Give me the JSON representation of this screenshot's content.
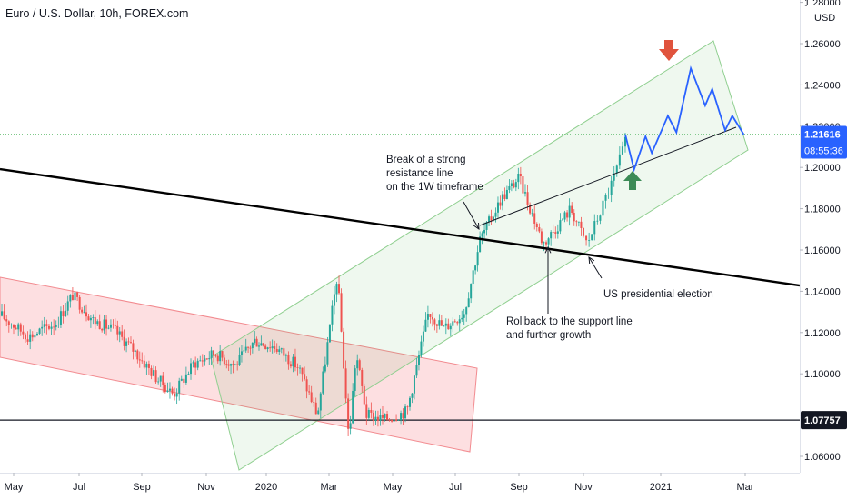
{
  "header": {
    "title": "Euro / U.S. Dollar, 10h, FOREX.com"
  },
  "price_axis": {
    "currency": "USD",
    "ticks": [
      "1.28000",
      "1.26000",
      "1.24000",
      "1.22000",
      "1.20000",
      "1.18000",
      "1.16000",
      "1.14000",
      "1.12000",
      "1.10000",
      "1.08000",
      "1.06000"
    ],
    "last_price": "1.21616",
    "countdown": "08:55:36",
    "level_label": "1.07757",
    "colors": {
      "price_tag": "#2962ff",
      "level_tag": "#131722"
    }
  },
  "time_axis": {
    "labels": [
      "May",
      "Jul",
      "Sep",
      "Nov",
      "2020",
      "Mar",
      "May",
      "Jul",
      "Sep",
      "Nov",
      "2021",
      "Mar"
    ]
  },
  "annotations": {
    "breakout": [
      "Break of a strong",
      "resistance line",
      "on the 1W timeframe"
    ],
    "rollback": [
      "Rollback to the support line",
      "and further growth"
    ],
    "election": "US presidential election"
  },
  "chart_data": {
    "type": "candlestick",
    "symbol": "EURUSD",
    "timeframe": "10h",
    "ylim": [
      1.052,
      1.285
    ],
    "price_path": [
      [
        "2019-04-20",
        1.128
      ],
      [
        "2019-05-15",
        1.118
      ],
      [
        "2019-06-10",
        1.125
      ],
      [
        "2019-06-25",
        1.138
      ],
      [
        "2019-07-15",
        1.126
      ],
      [
        "2019-08-05",
        1.121
      ],
      [
        "2019-08-25",
        1.111
      ],
      [
        "2019-09-15",
        1.098
      ],
      [
        "2019-10-01",
        1.09
      ],
      [
        "2019-10-20",
        1.105
      ],
      [
        "2019-11-10",
        1.11
      ],
      [
        "2019-11-30",
        1.104
      ],
      [
        "2019-12-20",
        1.116
      ],
      [
        "2020-01-10",
        1.113
      ],
      [
        "2020-02-01",
        1.103
      ],
      [
        "2020-02-19",
        1.08
      ],
      [
        "2020-03-09",
        1.148
      ],
      [
        "2020-03-20",
        1.068
      ],
      [
        "2020-03-27",
        1.11
      ],
      [
        "2020-04-06",
        1.08
      ],
      [
        "2020-04-24",
        1.078
      ],
      [
        "2020-05-15",
        1.082
      ],
      [
        "2020-06-05",
        1.13
      ],
      [
        "2020-06-20",
        1.122
      ],
      [
        "2020-07-10",
        1.13
      ],
      [
        "2020-07-25",
        1.165
      ],
      [
        "2020-08-15",
        1.185
      ],
      [
        "2020-09-01",
        1.195
      ],
      [
        "2020-09-24",
        1.163
      ],
      [
        "2020-10-20",
        1.18
      ],
      [
        "2020-11-04",
        1.163
      ],
      [
        "2020-11-25",
        1.195
      ],
      [
        "2020-12-04",
        1.212
      ]
    ],
    "projection": [
      [
        "2020-12-04",
        1.216
      ],
      [
        "2020-12-11",
        1.199
      ],
      [
        "2020-12-20",
        1.215
      ],
      [
        "2020-12-25",
        1.207
      ],
      [
        "2021-01-06",
        1.225
      ],
      [
        "2021-01-12",
        1.217
      ],
      [
        "2021-01-22",
        1.248
      ],
      [
        "2021-02-01",
        1.23
      ],
      [
        "2021-02-06",
        1.238
      ],
      [
        "2021-02-15",
        1.218
      ],
      [
        "2021-02-20",
        1.225
      ],
      [
        "2021-02-28",
        1.216
      ]
    ],
    "horizontal_line": 1.07757,
    "colors": {
      "up": "#26a69a",
      "down": "#ef5350",
      "projection": "#2962ff",
      "trendline": "#000000"
    }
  }
}
